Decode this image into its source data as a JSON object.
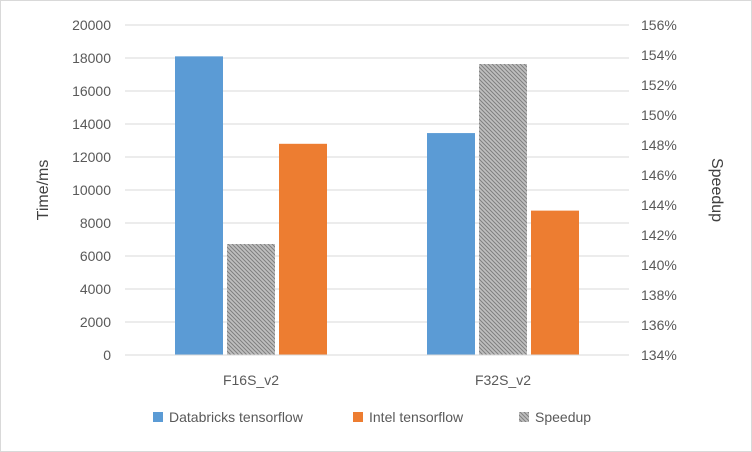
{
  "chart_data": {
    "type": "bar",
    "categories": [
      "F16S_v2",
      "F32S_v2"
    ],
    "series": [
      {
        "name": "Databricks tensorflow",
        "axis": "left",
        "color": "#5b9bd5",
        "values": [
          18100,
          13450
        ]
      },
      {
        "name": "Speedup",
        "axis": "right",
        "color": "#a5a5a5",
        "pattern": "hatched",
        "values": [
          141.4,
          153.4
        ]
      },
      {
        "name": "Intel tensorflow",
        "axis": "left",
        "color": "#ed7d31",
        "values": [
          12800,
          8750
        ]
      }
    ],
    "legend_order": [
      "Databricks tensorflow",
      "Intel tensorflow",
      "Speedup"
    ],
    "ylabel": "Time/ms",
    "y2label": "Speedup",
    "ylim": [
      0,
      20000
    ],
    "yticks": [
      0,
      2000,
      4000,
      6000,
      8000,
      10000,
      12000,
      14000,
      16000,
      18000,
      20000
    ],
    "y2lim": [
      134,
      156
    ],
    "y2ticks": [
      "134%",
      "136%",
      "138%",
      "140%",
      "142%",
      "144%",
      "146%",
      "148%",
      "150%",
      "152%",
      "154%",
      "156%"
    ],
    "grid": true,
    "legend_position": "bottom"
  }
}
